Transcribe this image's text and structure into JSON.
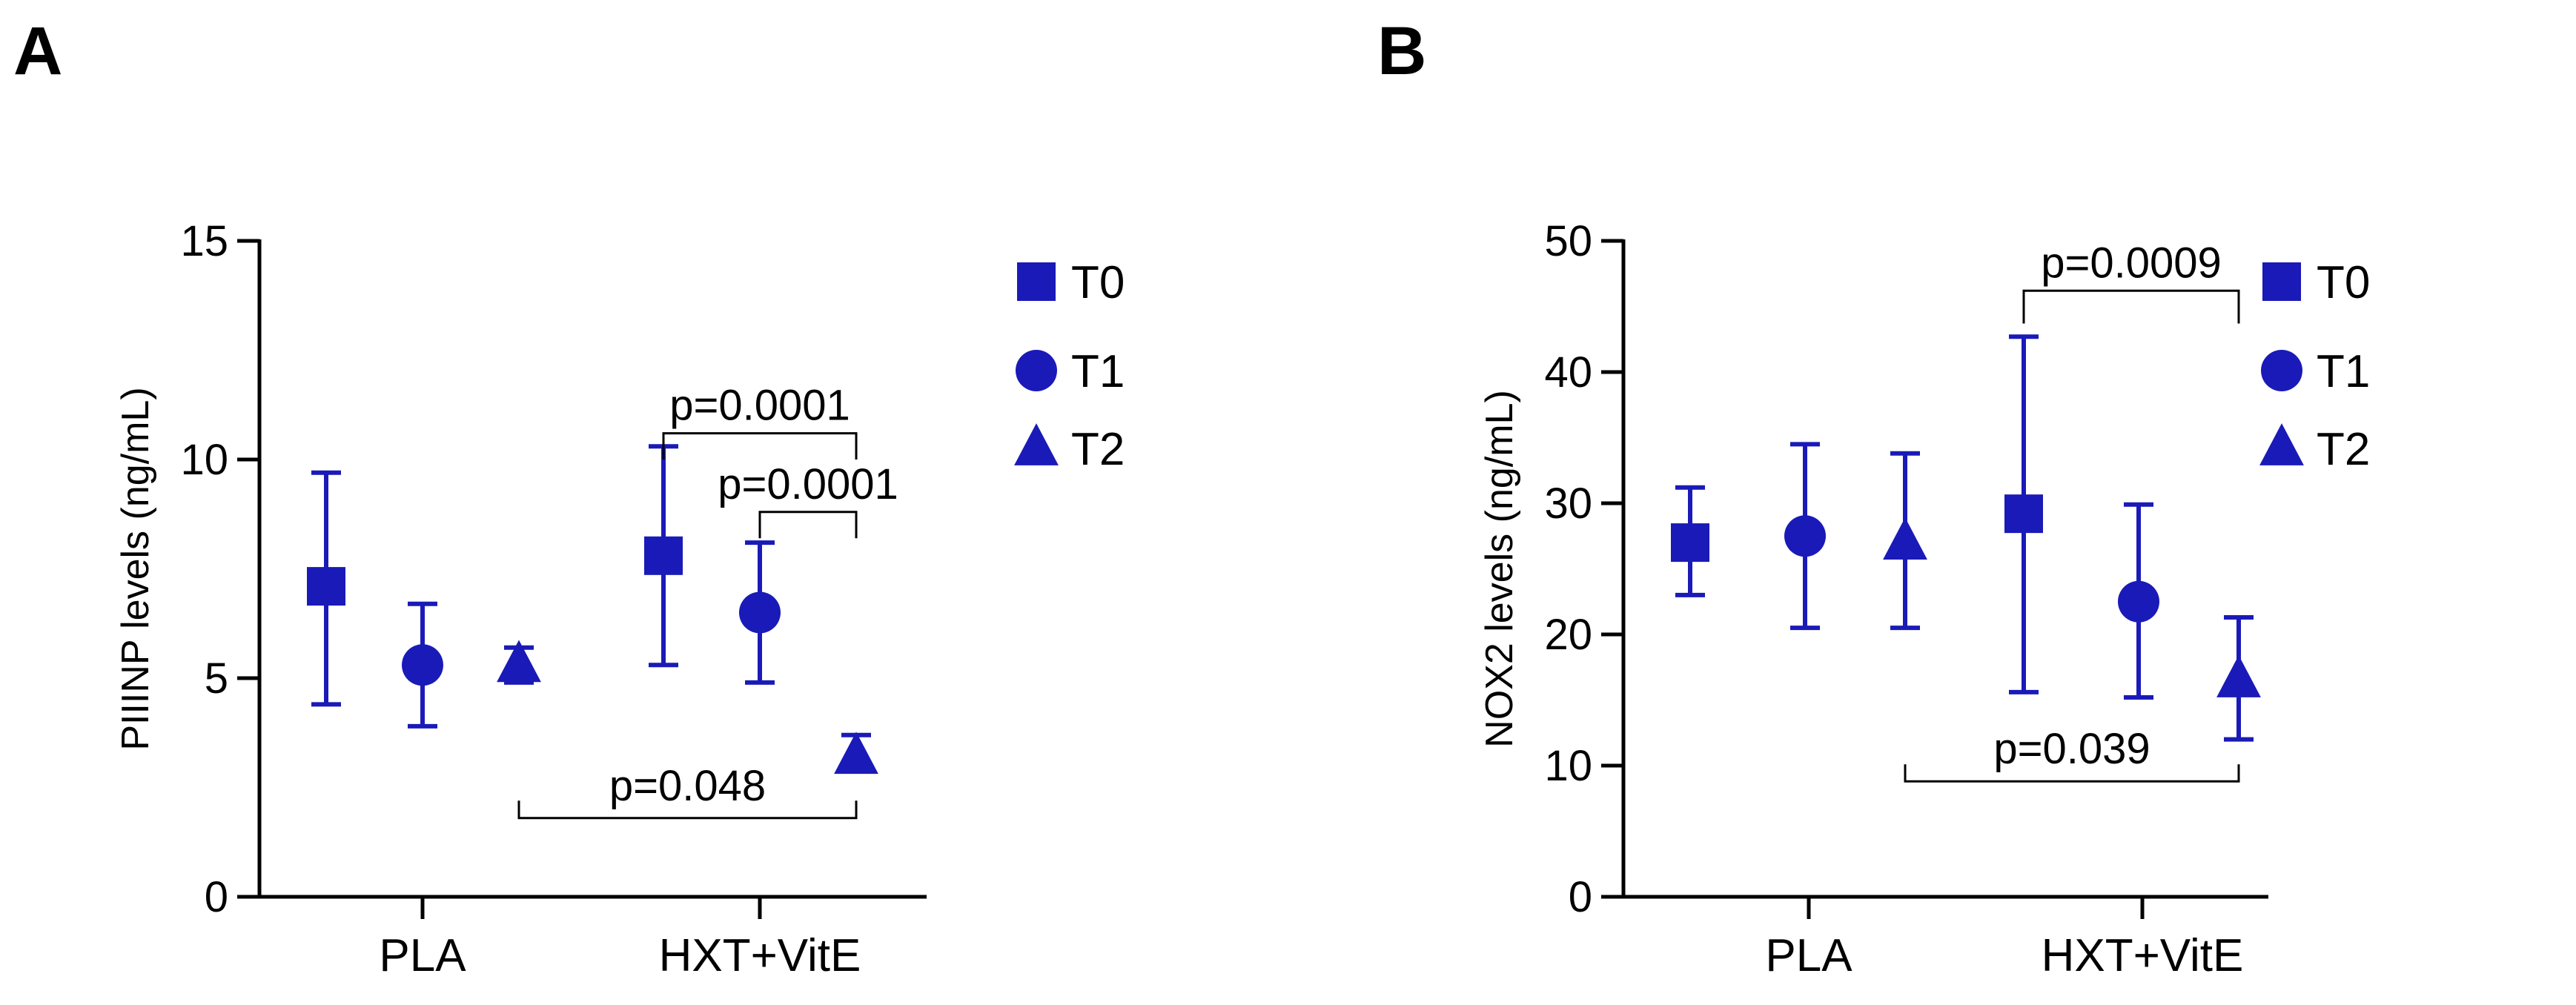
{
  "colors": {
    "series": "#1a1ab8"
  },
  "chart_data": [
    {
      "panel": "A",
      "type": "scatter",
      "ylabel": "PIIINP levels (ng/mL)",
      "ylim": [
        0,
        15
      ],
      "yticks": [
        0,
        5,
        10,
        15
      ],
      "categories": [
        "PLA",
        "HXT+VitE"
      ],
      "series": [
        {
          "name": "T0",
          "marker": "square",
          "points": [
            {
              "group": "PLA",
              "mean": 7.1,
              "low": 4.4,
              "high": 9.7
            },
            {
              "group": "HXT+VitE",
              "mean": 7.8,
              "low": 5.3,
              "high": 10.3
            }
          ]
        },
        {
          "name": "T1",
          "marker": "circle",
          "points": [
            {
              "group": "PLA",
              "mean": 5.3,
              "low": 3.9,
              "high": 6.7
            },
            {
              "group": "HXT+VitE",
              "mean": 6.5,
              "low": 4.9,
              "high": 8.1
            }
          ]
        },
        {
          "name": "T2",
          "marker": "triangle",
          "points": [
            {
              "group": "PLA",
              "mean": 5.3,
              "low": 4.9,
              "high": 5.7
            },
            {
              "group": "HXT+VitE",
              "mean": 3.2,
              "low": 2.9,
              "high": 3.7
            }
          ]
        }
      ],
      "annotations": [
        {
          "label": "p=0.0001",
          "from": "HXT+VitE|T0",
          "to": "HXT+VitE|T2",
          "level": 10.6,
          "drop": 0.6,
          "dir": "down"
        },
        {
          "label": "p=0.0001",
          "from": "HXT+VitE|T1",
          "to": "HXT+VitE|T2",
          "level": 8.8,
          "drop": 0.6,
          "dir": "down"
        },
        {
          "label": "p=0.048",
          "from": "PLA|T2",
          "to": "HXT+VitE|T2",
          "level": 1.8,
          "drop": 0.4,
          "dir": "up"
        }
      ]
    },
    {
      "panel": "B",
      "type": "scatter",
      "ylabel": "NOX2 levels (ng/mL)",
      "ylim": [
        0,
        50
      ],
      "yticks": [
        0,
        10,
        20,
        30,
        40,
        50
      ],
      "categories": [
        "PLA",
        "HXT+VitE"
      ],
      "series": [
        {
          "name": "T0",
          "marker": "square",
          "points": [
            {
              "group": "PLA",
              "mean": 27.0,
              "low": 23.0,
              "high": 31.2
            },
            {
              "group": "HXT+VitE",
              "mean": 29.2,
              "low": 15.6,
              "high": 42.7
            }
          ]
        },
        {
          "name": "T1",
          "marker": "circle",
          "points": [
            {
              "group": "PLA",
              "mean": 27.5,
              "low": 20.5,
              "high": 34.5
            },
            {
              "group": "HXT+VitE",
              "mean": 22.5,
              "low": 15.2,
              "high": 29.9
            }
          ]
        },
        {
          "name": "T2",
          "marker": "triangle",
          "points": [
            {
              "group": "PLA",
              "mean": 27.0,
              "low": 20.5,
              "high": 33.8
            },
            {
              "group": "HXT+VitE",
              "mean": 16.5,
              "low": 12.0,
              "high": 21.3
            }
          ]
        }
      ],
      "annotations": [
        {
          "label": "p=0.0009",
          "from": "HXT+VitE|T0",
          "to": "HXT+VitE|T2",
          "level": 46.2,
          "drop": 2.5,
          "dir": "down"
        },
        {
          "label": "p=0.039",
          "from": "PLA|T2",
          "to": "HXT+VitE|T2",
          "level": 8.8,
          "drop": 1.3,
          "dir": "up"
        }
      ]
    }
  ]
}
